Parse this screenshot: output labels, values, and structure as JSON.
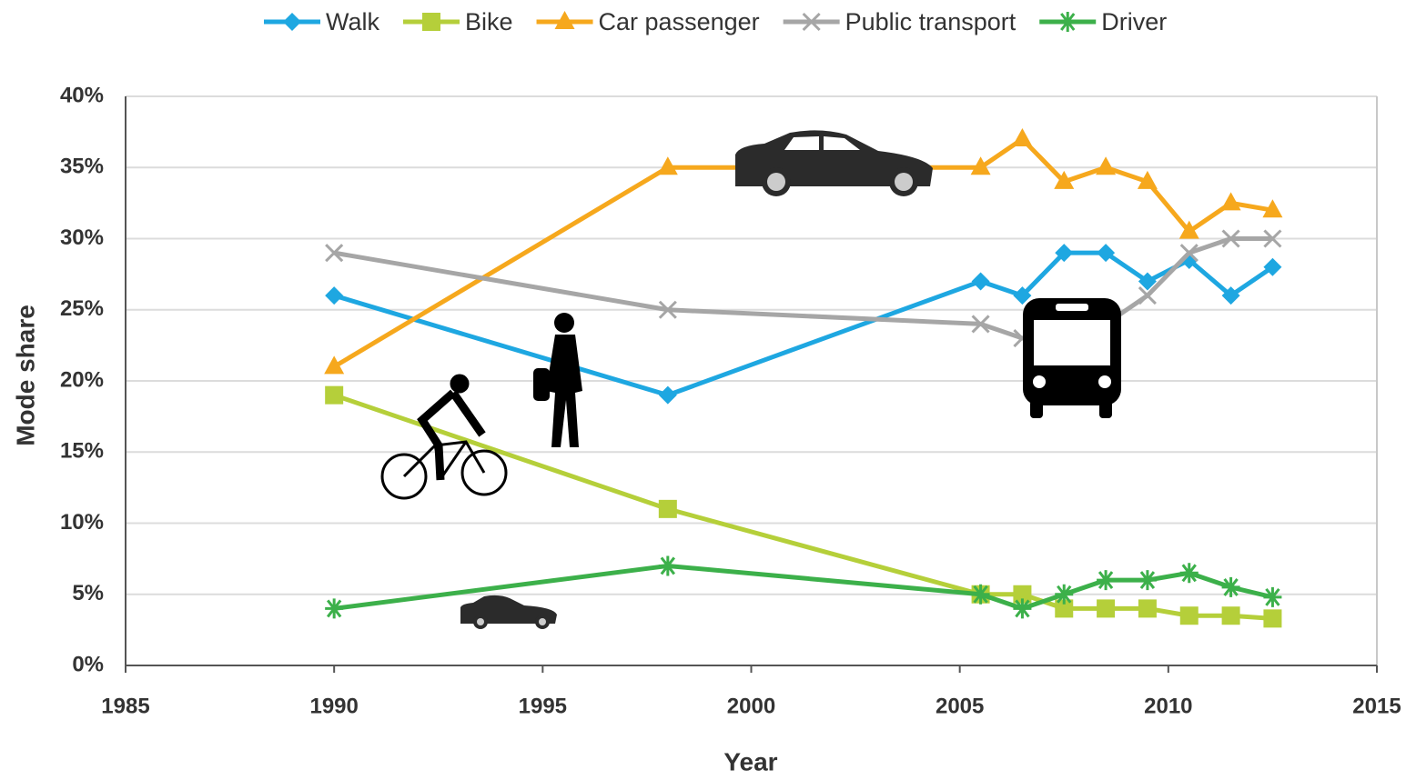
{
  "chart_data": {
    "type": "line",
    "x_label": "Year",
    "y_label": "Mode share",
    "x": [
      1990,
      1998,
      2005.5,
      2006.5,
      2007.5,
      2008.5,
      2009.5,
      2010.5,
      2011.5,
      2012.5
    ],
    "series": [
      {
        "name": "Walk",
        "color": "#1ea7e1",
        "marker": "diamond",
        "values": [
          26,
          19,
          27,
          26,
          29,
          29,
          27,
          28.5,
          26,
          28
        ]
      },
      {
        "name": "Bike",
        "color": "#b5cf3a",
        "marker": "square",
        "values": [
          19,
          11,
          5,
          5,
          4,
          4,
          4,
          3.5,
          3.5,
          3.3
        ]
      },
      {
        "name": "Car passenger",
        "color": "#f6a81d",
        "marker": "triangle",
        "values": [
          21,
          35,
          35,
          37,
          34,
          35,
          34,
          30.5,
          32.5,
          32
        ]
      },
      {
        "name": "Public transport",
        "color": "#a6a6a6",
        "marker": "x",
        "values": [
          29,
          25,
          24,
          23,
          23,
          24,
          26,
          29,
          30,
          30
        ]
      },
      {
        "name": "Driver",
        "color": "#3cb04a",
        "marker": "asterisk",
        "values": [
          4,
          7,
          5,
          4,
          5,
          6,
          6,
          6.5,
          5.5,
          4.8
        ]
      }
    ],
    "xlim": [
      1985,
      2015
    ],
    "xticks": [
      1985,
      1990,
      1995,
      2000,
      2005,
      2010,
      2015
    ],
    "ylim": [
      0,
      40
    ],
    "yticks": [
      {
        "value": 0,
        "label": "0%"
      },
      {
        "value": 5,
        "label": "5%"
      },
      {
        "value": 10,
        "label": "10%"
      },
      {
        "value": 15,
        "label": "15%"
      },
      {
        "value": 20,
        "label": "20%"
      },
      {
        "value": 25,
        "label": "25%"
      },
      {
        "value": 30,
        "label": "30%"
      },
      {
        "value": 35,
        "label": "35%"
      },
      {
        "value": 40,
        "label": "40%"
      }
    ],
    "grid": true,
    "legend": "top"
  }
}
